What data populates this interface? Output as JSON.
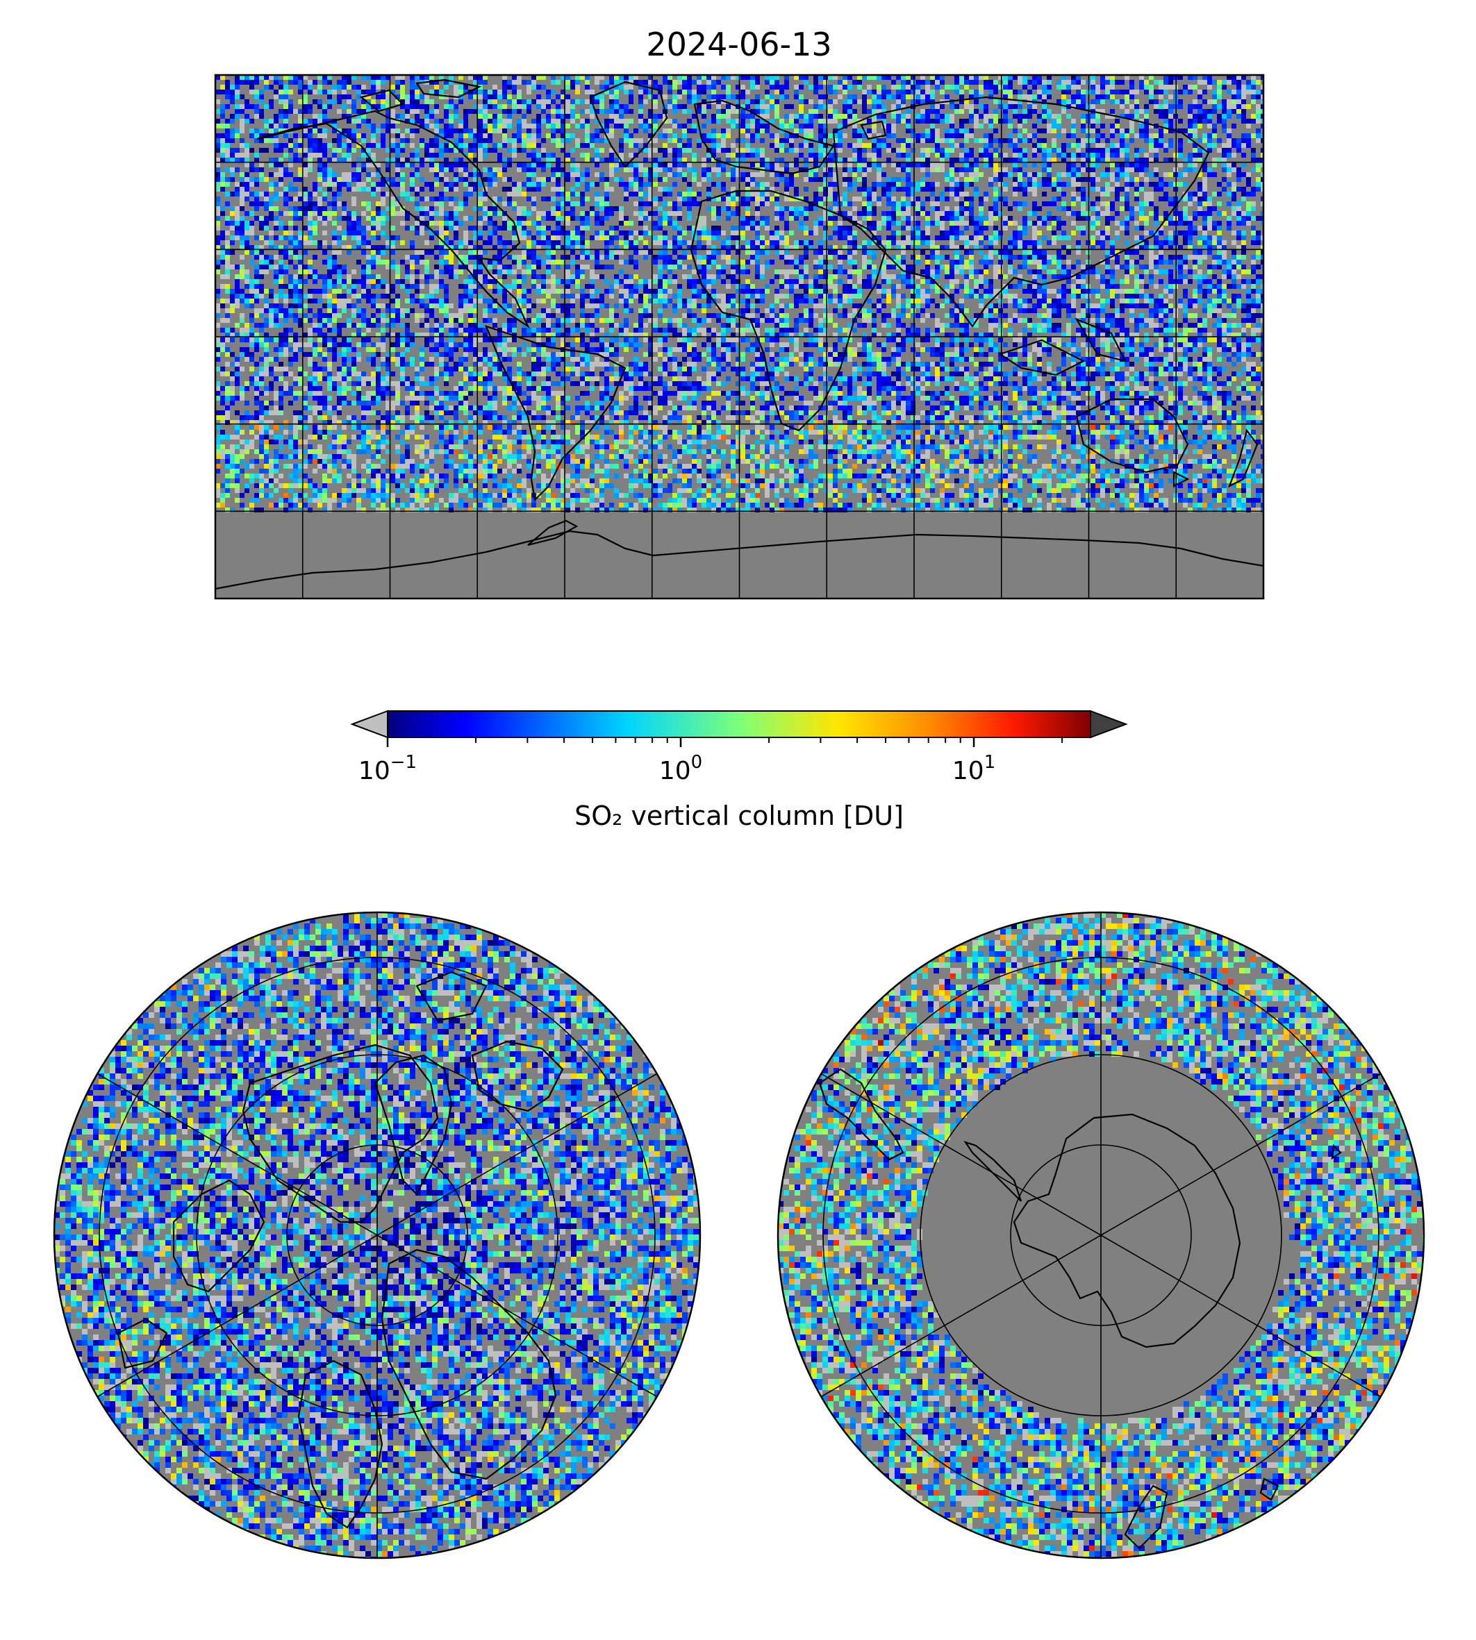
{
  "title": "2024-06-13",
  "colorbar": {
    "label": "SO₂ vertical column [DU]",
    "scale": "log",
    "range": [
      0.1,
      25
    ],
    "extend": "both",
    "under_color": "#c0c0c0",
    "over_color": "#404040",
    "colormap": "jet",
    "ticks": [
      {
        "value": 0.1,
        "base": "10",
        "exponent": "−1"
      },
      {
        "value": 1,
        "base": "10",
        "exponent": "0"
      },
      {
        "value": 10,
        "base": "10",
        "exponent": "1"
      }
    ]
  },
  "style": {
    "background_no_data": "#808080",
    "grid_color": "#000000",
    "coast_color": "#000000"
  },
  "maps": [
    {
      "name": "global",
      "projection": "plate-carree",
      "grid": true,
      "lon_step": 30,
      "lat_step": 30
    },
    {
      "name": "north-polar",
      "projection": "north-polar-stereographic",
      "grid": true
    },
    {
      "name": "south-polar",
      "projection": "south-polar-stereographic",
      "grid": true
    }
  ]
}
